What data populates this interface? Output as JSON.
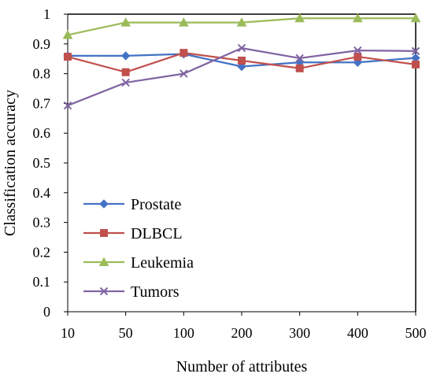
{
  "chart_data": {
    "type": "line",
    "categories": [
      "10",
      "50",
      "100",
      "200",
      "300",
      "400",
      "500"
    ],
    "series": [
      {
        "name": "Prostate",
        "values": [
          0.86,
          0.86,
          0.866,
          0.824,
          0.838,
          0.838,
          0.853
        ],
        "color": "#4472C4",
        "marker": "diamond"
      },
      {
        "name": "DLBCL",
        "values": [
          0.857,
          0.805,
          0.87,
          0.844,
          0.818,
          0.857,
          0.831
        ],
        "color": "#C0504D",
        "marker": "square"
      },
      {
        "name": "Leukemia",
        "values": [
          0.93,
          0.972,
          0.972,
          0.972,
          0.986,
          0.986,
          0.986
        ],
        "color": "#9BBB59",
        "marker": "triangle"
      },
      {
        "name": "Tumors",
        "values": [
          0.693,
          0.77,
          0.8,
          0.886,
          0.852,
          0.878,
          0.876
        ],
        "color": "#8064A2",
        "marker": "x"
      }
    ],
    "xlabel": "Number of attributes",
    "ylabel": "Classification accuracy",
    "ylim": [
      0,
      1
    ],
    "yticks": [
      "0",
      "0.1",
      "0.2",
      "0.3",
      "0.4",
      "0.5",
      "0.6",
      "0.7",
      "0.8",
      "0.9",
      "1"
    ],
    "grid": false,
    "legend_position": "lower-left inside"
  }
}
